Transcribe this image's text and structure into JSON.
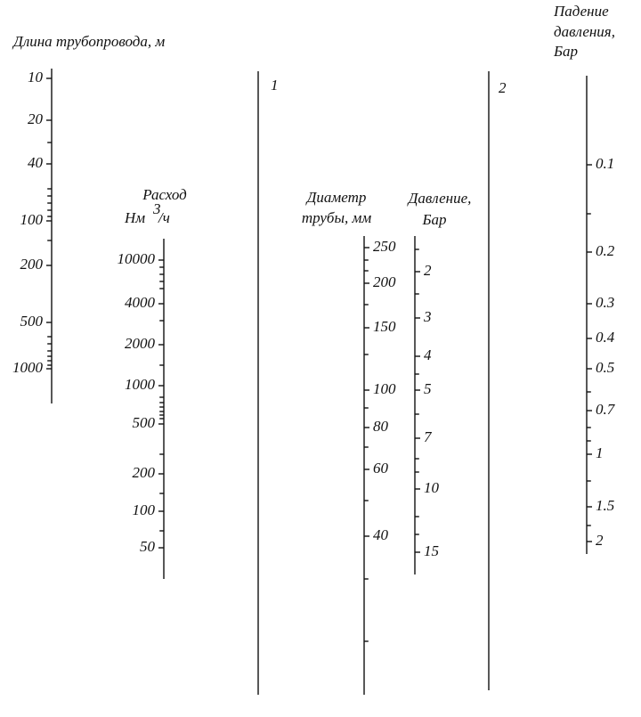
{
  "scales": [
    {
      "title": [
        "Длина трубопровода, м"
      ],
      "labels": [
        "10",
        "20",
        "40",
        "100",
        "200",
        "500",
        "1000"
      ]
    },
    {
      "title": [
        "Расход",
        "Нм",
        "3",
        "/ч"
      ],
      "labels": [
        "10000",
        "4000",
        "2000",
        "1000",
        "500",
        "200",
        "100",
        "50"
      ]
    },
    {
      "title": [
        "Диаметр",
        "трубы, мм"
      ],
      "labels": [
        "250",
        "200",
        "150",
        "100",
        "80",
        "60",
        "40"
      ]
    },
    {
      "title": [
        "Давление,",
        "Бар"
      ],
      "labels": [
        "2",
        "3",
        "4",
        "5",
        "7",
        "10",
        "15"
      ]
    },
    {
      "title": [
        "Падение",
        "давления,",
        "Бар"
      ],
      "labels": [
        "0.1",
        "0.2",
        "0.3",
        "0.4",
        "0.5",
        "0.7",
        "1",
        "1.5",
        "2"
      ]
    }
  ],
  "lines": [
    "1",
    "2"
  ]
}
